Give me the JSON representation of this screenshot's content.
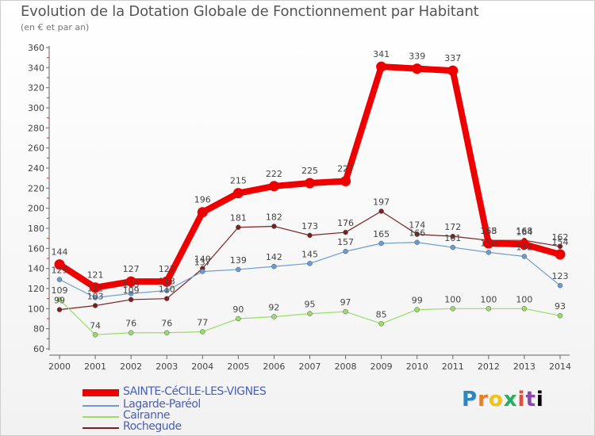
{
  "title": "Evolution de la Dotation Globale de Fonctionnement par Habitant",
  "subtitle": "(en € et par an)",
  "logo": {
    "chars": [
      "P",
      "r",
      "o",
      "x",
      "i",
      "t",
      "i"
    ]
  },
  "chart_data": {
    "type": "line",
    "title": "Evolution de la Dotation Globale de Fonctionnement par Habitant",
    "subtitle": "(en € et par an)",
    "xlabel": "",
    "ylabel": "",
    "ylim": [
      60,
      360
    ],
    "yticks": [
      60,
      80,
      100,
      120,
      140,
      160,
      180,
      200,
      220,
      240,
      260,
      280,
      300,
      320,
      340,
      360
    ],
    "grid": false,
    "legend_position": "bottom-left",
    "x": [
      "2000",
      "2001",
      "2002",
      "2003",
      "2004",
      "2005",
      "2006",
      "2007",
      "2008",
      "2009",
      "2010",
      "2011",
      "2012",
      "2013",
      "2014"
    ],
    "series": [
      {
        "name": "Rochegude",
        "color": "#7b2020",
        "values": [
          99,
          103,
          109,
          110,
          140,
          181,
          182,
          173,
          176,
          197,
          174,
          172,
          168,
          168,
          162
        ]
      },
      {
        "name": "Cairanne",
        "color": "#99dd66",
        "values": [
          109,
          74,
          76,
          76,
          77,
          90,
          92,
          95,
          97,
          85,
          99,
          100,
          100,
          100,
          93
        ]
      },
      {
        "name": "Lagarde-Paréol",
        "color": "#6b9cd1",
        "values": [
          129,
          111,
          115,
          118,
          137,
          139,
          142,
          145,
          157,
          165,
          166,
          161,
          156,
          152,
          123
        ]
      },
      {
        "name": "SAINTE-CéCILE-LES-VIGNES",
        "color": "#ee0000",
        "values": [
          144,
          121,
          127,
          127,
          196,
          215,
          222,
          225,
          227,
          341,
          339,
          337,
          165,
          164,
          154
        ]
      }
    ]
  }
}
